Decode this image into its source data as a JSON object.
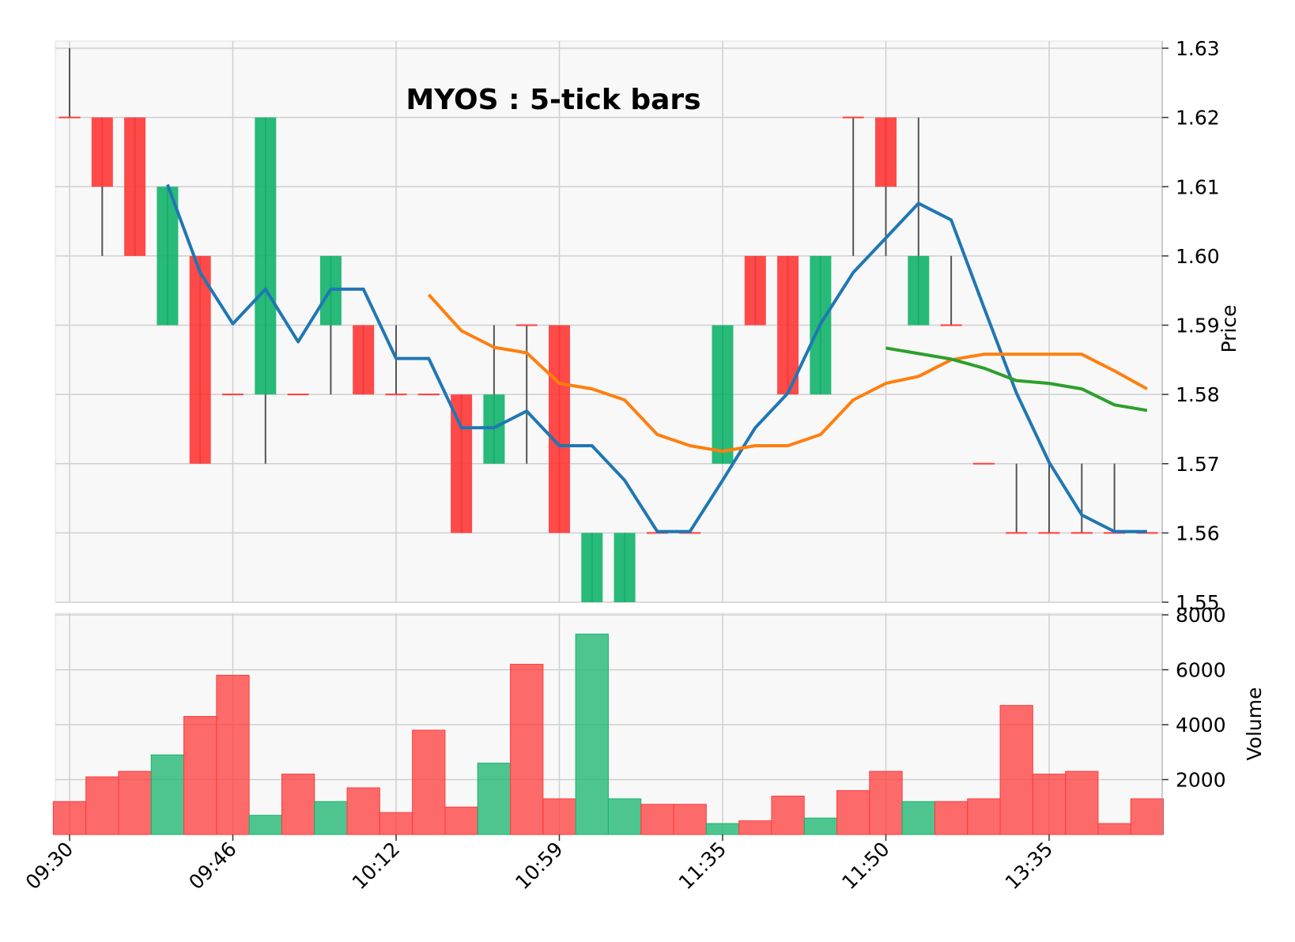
{
  "chart_data": {
    "type": "candlestick",
    "title": "MYOS : 5-tick bars",
    "price_axis": {
      "label": "Price",
      "ylim": [
        1.55,
        1.63
      ],
      "ticks": [
        "1.63",
        "1.62",
        "1.61",
        "1.60",
        "1.59",
        "1.58",
        "1.57",
        "1.56",
        "1.55"
      ]
    },
    "volume_axis": {
      "label": "Volume",
      "ylim": [
        0,
        8000
      ],
      "ticks": [
        "8000",
        "6000",
        "4000",
        "2000"
      ]
    },
    "x_ticks": [
      {
        "index": 0,
        "label": "09:30"
      },
      {
        "index": 5,
        "label": "09:46"
      },
      {
        "index": 10,
        "label": "10:12"
      },
      {
        "index": 15,
        "label": "10:59"
      },
      {
        "index": 20,
        "label": "11:35"
      },
      {
        "index": 25,
        "label": "11:50"
      },
      {
        "index": 30,
        "label": "13:35"
      }
    ],
    "colors": {
      "up": "#16b46c",
      "down": "#ff3b3b",
      "wick": "#555555",
      "ma_blue": "#1f77b4",
      "ma_orange": "#ff7f0e",
      "ma_green": "#2ca02c"
    },
    "grid": true,
    "candles": [
      {
        "o": 1.62,
        "h": 1.63,
        "l": 1.62,
        "c": 1.62
      },
      {
        "o": 1.62,
        "h": 1.62,
        "l": 1.6,
        "c": 1.61
      },
      {
        "o": 1.62,
        "h": 1.62,
        "l": 1.6,
        "c": 1.6
      },
      {
        "o": 1.59,
        "h": 1.61,
        "l": 1.59,
        "c": 1.61
      },
      {
        "o": 1.6,
        "h": 1.6,
        "l": 1.57,
        "c": 1.57
      },
      {
        "o": 1.58,
        "h": 1.58,
        "l": 1.58,
        "c": 1.58
      },
      {
        "o": 1.58,
        "h": 1.62,
        "l": 1.57,
        "c": 1.62
      },
      {
        "o": 1.58,
        "h": 1.58,
        "l": 1.58,
        "c": 1.58
      },
      {
        "o": 1.59,
        "h": 1.6,
        "l": 1.58,
        "c": 1.6
      },
      {
        "o": 1.59,
        "h": 1.59,
        "l": 1.58,
        "c": 1.58
      },
      {
        "o": 1.58,
        "h": 1.59,
        "l": 1.58,
        "c": 1.58
      },
      {
        "o": 1.58,
        "h": 1.58,
        "l": 1.58,
        "c": 1.58
      },
      {
        "o": 1.58,
        "h": 1.58,
        "l": 1.56,
        "c": 1.56
      },
      {
        "o": 1.57,
        "h": 1.59,
        "l": 1.57,
        "c": 1.58
      },
      {
        "o": 1.59,
        "h": 1.59,
        "l": 1.57,
        "c": 1.59
      },
      {
        "o": 1.59,
        "h": 1.59,
        "l": 1.56,
        "c": 1.56
      },
      {
        "o": 1.55,
        "h": 1.56,
        "l": 1.55,
        "c": 1.56
      },
      {
        "o": 1.55,
        "h": 1.56,
        "l": 1.55,
        "c": 1.56
      },
      {
        "o": 1.56,
        "h": 1.56,
        "l": 1.56,
        "c": 1.56
      },
      {
        "o": 1.56,
        "h": 1.56,
        "l": 1.56,
        "c": 1.56
      },
      {
        "o": 1.57,
        "h": 1.59,
        "l": 1.57,
        "c": 1.59
      },
      {
        "o": 1.6,
        "h": 1.6,
        "l": 1.59,
        "c": 1.59
      },
      {
        "o": 1.6,
        "h": 1.6,
        "l": 1.58,
        "c": 1.58
      },
      {
        "o": 1.58,
        "h": 1.6,
        "l": 1.58,
        "c": 1.6
      },
      {
        "o": 1.62,
        "h": 1.62,
        "l": 1.6,
        "c": 1.62
      },
      {
        "o": 1.62,
        "h": 1.62,
        "l": 1.6,
        "c": 1.61
      },
      {
        "o": 1.59,
        "h": 1.62,
        "l": 1.59,
        "c": 1.6
      },
      {
        "o": 1.59,
        "h": 1.6,
        "l": 1.59,
        "c": 1.59
      },
      {
        "o": 1.57,
        "h": 1.57,
        "l": 1.57,
        "c": 1.57
      },
      {
        "o": 1.56,
        "h": 1.57,
        "l": 1.56,
        "c": 1.56
      },
      {
        "o": 1.56,
        "h": 1.57,
        "l": 1.56,
        "c": 1.56
      },
      {
        "o": 1.56,
        "h": 1.57,
        "l": 1.56,
        "c": 1.56
      },
      {
        "o": 1.56,
        "h": 1.57,
        "l": 1.56,
        "c": 1.56
      },
      {
        "o": 1.56,
        "h": 1.56,
        "l": 1.56,
        "c": 1.56
      }
    ],
    "volume": [
      1200,
      2100,
      2300,
      2900,
      4300,
      5800,
      700,
      2200,
      1200,
      1700,
      800,
      3800,
      1000,
      2600,
      6200,
      1300,
      7300,
      1300,
      1100,
      1100,
      400,
      500,
      1400,
      600,
      1600,
      2300,
      1200,
      1200,
      1300,
      4700,
      2200,
      2300,
      400,
      1300
    ],
    "series": [
      {
        "color": "#1f77b4",
        "points": [
          [
            3,
            1.6103
          ],
          [
            4,
            1.5976
          ],
          [
            5,
            1.5902
          ],
          [
            6,
            1.5952
          ],
          [
            7,
            1.5876
          ],
          [
            8,
            1.5952
          ],
          [
            9,
            1.5952
          ],
          [
            10,
            1.5852
          ],
          [
            11,
            1.5852
          ],
          [
            12,
            1.5752
          ],
          [
            13,
            1.5752
          ],
          [
            14,
            1.5776
          ],
          [
            15,
            1.5726
          ],
          [
            16,
            1.5726
          ],
          [
            17,
            1.5676
          ],
          [
            18,
            1.5602
          ],
          [
            19,
            1.5602
          ],
          [
            20,
            1.5676
          ],
          [
            21,
            1.5752
          ],
          [
            22,
            1.5802
          ],
          [
            23,
            1.5902
          ],
          [
            24,
            1.5976
          ],
          [
            25,
            1.6026
          ],
          [
            26,
            1.6076
          ],
          [
            27,
            1.6052
          ],
          [
            28,
            1.5926
          ],
          [
            29,
            1.5802
          ],
          [
            30,
            1.5702
          ],
          [
            31,
            1.5626
          ],
          [
            32,
            1.5602
          ],
          [
            33,
            1.5602
          ]
        ]
      },
      {
        "color": "#ff7f0e",
        "points": [
          [
            11,
            1.5944
          ],
          [
            12,
            1.5892
          ],
          [
            13,
            1.5868
          ],
          [
            14,
            1.586
          ],
          [
            15,
            1.5816
          ],
          [
            16,
            1.5808
          ],
          [
            17,
            1.5792
          ],
          [
            18,
            1.5742
          ],
          [
            19,
            1.5726
          ],
          [
            20,
            1.5718
          ],
          [
            21,
            1.5726
          ],
          [
            22,
            1.5726
          ],
          [
            23,
            1.5742
          ],
          [
            24,
            1.5792
          ],
          [
            25,
            1.5816
          ],
          [
            26,
            1.5826
          ],
          [
            27,
            1.585
          ],
          [
            28,
            1.5858
          ],
          [
            29,
            1.5858
          ],
          [
            30,
            1.5858
          ],
          [
            31,
            1.5858
          ],
          [
            32,
            1.5834
          ],
          [
            33,
            1.5808
          ]
        ]
      },
      {
        "color": "#2ca02c",
        "points": [
          [
            25,
            1.5867
          ],
          [
            26,
            1.5859
          ],
          [
            27,
            1.5851
          ],
          [
            28,
            1.5838
          ],
          [
            29,
            1.582
          ],
          [
            30,
            1.5816
          ],
          [
            31,
            1.5808
          ],
          [
            32,
            1.5785
          ],
          [
            33,
            1.5777
          ]
        ]
      }
    ]
  }
}
